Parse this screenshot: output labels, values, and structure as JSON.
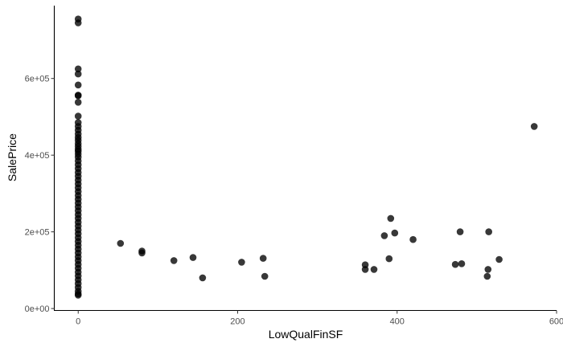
{
  "chart_data": {
    "type": "scatter",
    "title": "",
    "xlabel": "LowQualFinSF",
    "ylabel": "SalePrice",
    "xlim": [
      -30,
      600
    ],
    "ylim": [
      -5000,
      790000
    ],
    "x_ticks": [
      0,
      200,
      400,
      600
    ],
    "x_tick_labels": [
      "0",
      "200",
      "400",
      "600"
    ],
    "y_ticks": [
      0,
      200000,
      400000,
      600000
    ],
    "y_tick_labels": [
      "0e+00",
      "2e+05",
      "4e+05",
      "6e+05"
    ],
    "grid": false,
    "point_color": "#000000",
    "background": "#ffffff",
    "points": [
      {
        "x": 0,
        "y": 755000
      },
      {
        "x": 0,
        "y": 745000
      },
      {
        "x": 0,
        "y": 625000
      },
      {
        "x": 0,
        "y": 611657
      },
      {
        "x": 0,
        "y": 582933
      },
      {
        "x": 0,
        "y": 556581
      },
      {
        "x": 0,
        "y": 555000
      },
      {
        "x": 0,
        "y": 538000
      },
      {
        "x": 0,
        "y": 501837
      },
      {
        "x": 0,
        "y": 485000
      },
      {
        "x": 0,
        "y": 475000
      },
      {
        "x": 0,
        "y": 465000
      },
      {
        "x": 0,
        "y": 455000
      },
      {
        "x": 0,
        "y": 446261
      },
      {
        "x": 0,
        "y": 438780
      },
      {
        "x": 0,
        "y": 430000
      },
      {
        "x": 0,
        "y": 423000
      },
      {
        "x": 0,
        "y": 415298
      },
      {
        "x": 0,
        "y": 410000
      },
      {
        "x": 0,
        "y": 402861
      },
      {
        "x": 0,
        "y": 395000
      },
      {
        "x": 0,
        "y": 385000
      },
      {
        "x": 0,
        "y": 375000
      },
      {
        "x": 0,
        "y": 365000
      },
      {
        "x": 0,
        "y": 355000
      },
      {
        "x": 0,
        "y": 345000
      },
      {
        "x": 0,
        "y": 335000
      },
      {
        "x": 0,
        "y": 325000
      },
      {
        "x": 0,
        "y": 315000
      },
      {
        "x": 0,
        "y": 305000
      },
      {
        "x": 0,
        "y": 295000
      },
      {
        "x": 0,
        "y": 285000
      },
      {
        "x": 0,
        "y": 275000
      },
      {
        "x": 0,
        "y": 265000
      },
      {
        "x": 0,
        "y": 255000
      },
      {
        "x": 0,
        "y": 245000
      },
      {
        "x": 0,
        "y": 235000
      },
      {
        "x": 0,
        "y": 225000
      },
      {
        "x": 0,
        "y": 215000
      },
      {
        "x": 0,
        "y": 205000
      },
      {
        "x": 0,
        "y": 195000
      },
      {
        "x": 0,
        "y": 185000
      },
      {
        "x": 0,
        "y": 175000
      },
      {
        "x": 0,
        "y": 165000
      },
      {
        "x": 0,
        "y": 155000
      },
      {
        "x": 0,
        "y": 145000
      },
      {
        "x": 0,
        "y": 135000
      },
      {
        "x": 0,
        "y": 125000
      },
      {
        "x": 0,
        "y": 115000
      },
      {
        "x": 0,
        "y": 105000
      },
      {
        "x": 0,
        "y": 95000
      },
      {
        "x": 0,
        "y": 85000
      },
      {
        "x": 0,
        "y": 75000
      },
      {
        "x": 0,
        "y": 65000
      },
      {
        "x": 0,
        "y": 55000
      },
      {
        "x": 0,
        "y": 45000
      },
      {
        "x": 0,
        "y": 37900
      },
      {
        "x": 0,
        "y": 34900
      },
      {
        "x": 53,
        "y": 170000
      },
      {
        "x": 80,
        "y": 150000
      },
      {
        "x": 80,
        "y": 145000
      },
      {
        "x": 120,
        "y": 125000
      },
      {
        "x": 144,
        "y": 133000
      },
      {
        "x": 156,
        "y": 80000
      },
      {
        "x": 205,
        "y": 121000
      },
      {
        "x": 232,
        "y": 131000
      },
      {
        "x": 234,
        "y": 84000
      },
      {
        "x": 360,
        "y": 114000
      },
      {
        "x": 360,
        "y": 102000
      },
      {
        "x": 371,
        "y": 102000
      },
      {
        "x": 384,
        "y": 190000
      },
      {
        "x": 390,
        "y": 130000
      },
      {
        "x": 392,
        "y": 235000
      },
      {
        "x": 397,
        "y": 197000
      },
      {
        "x": 420,
        "y": 180000
      },
      {
        "x": 473,
        "y": 115000
      },
      {
        "x": 479,
        "y": 200000
      },
      {
        "x": 481,
        "y": 117000
      },
      {
        "x": 513,
        "y": 84000
      },
      {
        "x": 514,
        "y": 102000
      },
      {
        "x": 515,
        "y": 200000
      },
      {
        "x": 528,
        "y": 128000
      },
      {
        "x": 572,
        "y": 475000
      }
    ]
  }
}
